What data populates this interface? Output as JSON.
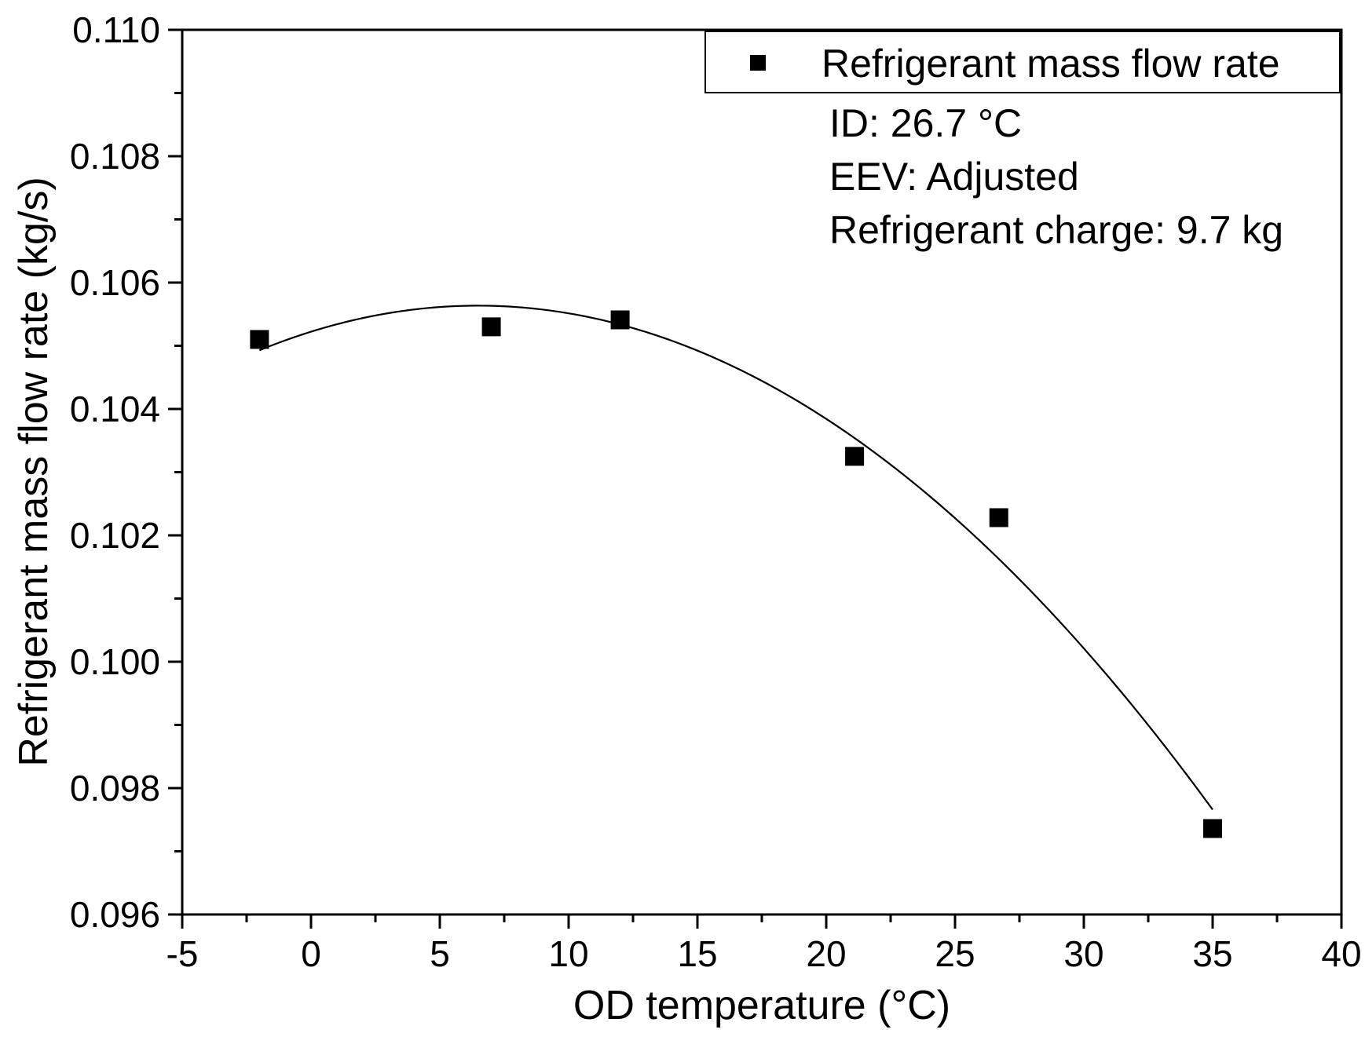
{
  "chart_data": {
    "type": "scatter",
    "title": "",
    "xlabel": "OD temperature (°C)",
    "ylabel": "Refrigerant mass flow rate (kg/s)",
    "xlim": [
      -5,
      40
    ],
    "ylim": [
      0.096,
      0.11
    ],
    "x_ticks": [
      -5,
      0,
      5,
      10,
      15,
      20,
      25,
      30,
      35,
      40
    ],
    "x_tick_labels": [
      "-5",
      "0",
      "5",
      "10",
      "15",
      "20",
      "25",
      "30",
      "35",
      "40"
    ],
    "y_ticks": [
      0.096,
      0.098,
      0.1,
      0.102,
      0.104,
      0.106,
      0.108,
      0.11
    ],
    "y_tick_labels": [
      "0.096",
      "0.098",
      "0.100",
      "0.102",
      "0.104",
      "0.106",
      "0.108",
      "0.110"
    ],
    "grid": false,
    "legend_position": "top-right",
    "series": [
      {
        "name": "Refrigerant mass flow rate",
        "marker": "square",
        "x": [
          -2,
          7,
          12,
          21.1,
          26.7,
          35
        ],
        "y": [
          0.1051,
          0.1053,
          0.10541,
          0.10325,
          0.10228,
          0.09736
        ]
      }
    ],
    "fit_curve": {
      "type": "polynomial-2",
      "x_range": [
        -2,
        35
      ],
      "points": [
        [
          -2,
          0.10492
        ],
        [
          6.5,
          0.10565
        ],
        [
          12,
          0.10538
        ],
        [
          20,
          0.10371
        ],
        [
          27,
          0.10162
        ],
        [
          35,
          0.09763
        ]
      ]
    },
    "annotations": [
      "ID: 26.7 °C",
      "EEV: Adjusted",
      "Refrigerant charge: 9.7 kg"
    ]
  },
  "legend": {
    "label": "Refrigerant mass flow rate"
  },
  "colors": {
    "ink": "#000000",
    "background": "#ffffff"
  }
}
